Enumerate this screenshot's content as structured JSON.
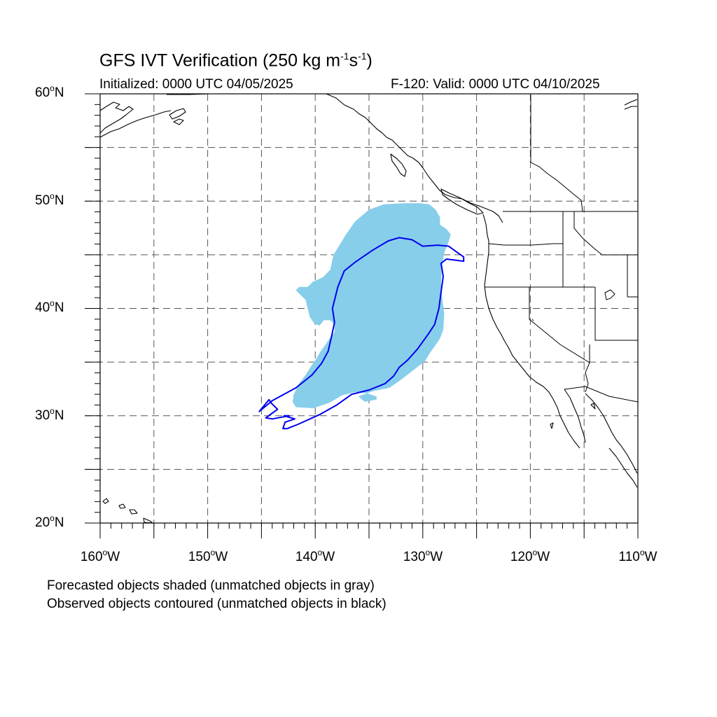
{
  "figure": {
    "title_main": "GFS IVT Verification (250 kg m",
    "title_exp1": "-1",
    "title_mid": "s",
    "title_exp2": "-1",
    "title_end": ")",
    "initialized": "Initialized: 0000 UTC 04/05/2025",
    "valid": "F-120: Valid: 0000 UTC 04/10/2025"
  },
  "axes": {
    "lat_labels": [
      {
        "value": "60",
        "deg": "o",
        "hemi": "N"
      },
      {
        "value": "50",
        "deg": "o",
        "hemi": "N"
      },
      {
        "value": "40",
        "deg": "o",
        "hemi": "N"
      },
      {
        "value": "30",
        "deg": "o",
        "hemi": "N"
      },
      {
        "value": "20",
        "deg": "o",
        "hemi": "N"
      }
    ],
    "lon_labels": [
      {
        "value": "160",
        "deg": "o",
        "hemi": "W"
      },
      {
        "value": "150",
        "deg": "o",
        "hemi": "W"
      },
      {
        "value": "140",
        "deg": "o",
        "hemi": "W"
      },
      {
        "value": "130",
        "deg": "o",
        "hemi": "W"
      },
      {
        "value": "120",
        "deg": "o",
        "hemi": "W"
      },
      {
        "value": "110",
        "deg": "o",
        "hemi": "W"
      }
    ],
    "lon_range": [
      -160,
      -110
    ],
    "lat_range": [
      20,
      60
    ],
    "grid_lon_step": 5,
    "grid_lat_step": 5,
    "grid": "dashed"
  },
  "notes": {
    "line1": "Forecasted objects shaded (unmatched objects in gray)",
    "line2": "Observed objects contoured (unmatched objects in black)"
  },
  "colors": {
    "forecast_fill": "#87ceeb",
    "observed_contour": "#0000ee",
    "coastline": "#000000",
    "grid": "#555555"
  },
  "objects": {
    "forecast_object": {
      "status": "matched",
      "outline": [
        [
          -130.3,
          49.8
        ],
        [
          -131.6,
          49.8
        ],
        [
          -133.6,
          49.7
        ],
        [
          -135.0,
          49.2
        ],
        [
          -136.3,
          48.1
        ],
        [
          -137.2,
          46.8
        ],
        [
          -137.8,
          45.8
        ],
        [
          -138.3,
          45.0
        ],
        [
          -138.6,
          43.6
        ],
        [
          -139.3,
          42.9
        ],
        [
          -140.2,
          42.5
        ],
        [
          -140.7,
          42.0
        ],
        [
          -141.5,
          42.0
        ],
        [
          -141.8,
          41.7
        ],
        [
          -141.4,
          41.3
        ],
        [
          -140.9,
          40.8
        ],
        [
          -140.7,
          40.0
        ],
        [
          -140.5,
          39.2
        ],
        [
          -140.1,
          38.6
        ],
        [
          -139.6,
          38.4
        ],
        [
          -139.2,
          38.9
        ],
        [
          -138.6,
          38.9
        ],
        [
          -138.2,
          38.5
        ],
        [
          -138.2,
          37.8
        ],
        [
          -138.6,
          37.3
        ],
        [
          -139.0,
          36.7
        ],
        [
          -139.5,
          36.0
        ],
        [
          -139.9,
          35.3
        ],
        [
          -140.4,
          34.6
        ],
        [
          -140.9,
          33.8
        ],
        [
          -141.5,
          33.0
        ],
        [
          -142.0,
          32.0
        ],
        [
          -142.1,
          31.3
        ],
        [
          -141.8,
          30.8
        ],
        [
          -140.2,
          30.7
        ],
        [
          -138.7,
          31.2
        ],
        [
          -137.5,
          31.9
        ],
        [
          -136.3,
          32.2
        ],
        [
          -135.2,
          32.1
        ],
        [
          -134.3,
          31.8
        ],
        [
          -134.3,
          31.5
        ],
        [
          -135.4,
          31.3
        ],
        [
          -136.0,
          31.8
        ],
        [
          -134.6,
          32.3
        ],
        [
          -133.1,
          32.6
        ],
        [
          -132.1,
          33.3
        ],
        [
          -130.8,
          34.3
        ],
        [
          -129.8,
          35.1
        ],
        [
          -129.3,
          35.9
        ],
        [
          -128.8,
          36.6
        ],
        [
          -128.4,
          37.2
        ],
        [
          -128.1,
          38.0
        ],
        [
          -128.0,
          39.5
        ],
        [
          -128.2,
          41.0
        ],
        [
          -128.3,
          42.5
        ],
        [
          -128.2,
          44.0
        ],
        [
          -128.0,
          45.2
        ],
        [
          -127.6,
          46.2
        ],
        [
          -127.4,
          46.9
        ],
        [
          -127.8,
          47.4
        ],
        [
          -128.4,
          47.8
        ],
        [
          -128.4,
          48.5
        ],
        [
          -128.8,
          49.2
        ],
        [
          -129.4,
          49.7
        ]
      ]
    },
    "observed_object": {
      "status": "matched",
      "outline": [
        [
          -138.4,
          40.0
        ],
        [
          -137.9,
          42.0
        ],
        [
          -137.3,
          43.5
        ],
        [
          -136.3,
          44.3
        ],
        [
          -134.7,
          45.4
        ],
        [
          -133.2,
          46.3
        ],
        [
          -132.2,
          46.6
        ],
        [
          -131.0,
          46.4
        ],
        [
          -130.0,
          45.8
        ],
        [
          -128.6,
          45.9
        ],
        [
          -127.6,
          45.8
        ],
        [
          -126.9,
          45.3
        ],
        [
          -126.2,
          44.8
        ],
        [
          -126.2,
          44.4
        ],
        [
          -127.0,
          44.5
        ],
        [
          -127.8,
          44.6
        ],
        [
          -128.3,
          44.2
        ],
        [
          -128.1,
          43.0
        ],
        [
          -128.3,
          41.5
        ],
        [
          -128.5,
          40.0
        ],
        [
          -128.9,
          38.5
        ],
        [
          -129.5,
          37.6
        ],
        [
          -130.5,
          36.2
        ],
        [
          -131.4,
          35.2
        ],
        [
          -132.2,
          34.5
        ],
        [
          -132.7,
          33.7
        ],
        [
          -133.5,
          33.0
        ],
        [
          -135.0,
          32.4
        ],
        [
          -136.6,
          32.0
        ],
        [
          -138.0,
          31.0
        ],
        [
          -139.6,
          30.1
        ],
        [
          -141.6,
          29.2
        ],
        [
          -142.6,
          28.8
        ],
        [
          -143.0,
          28.8
        ],
        [
          -142.8,
          29.4
        ],
        [
          -141.9,
          29.7
        ],
        [
          -142.9,
          30.0
        ],
        [
          -142.4,
          30.0
        ],
        [
          -144.0,
          29.7
        ],
        [
          -144.6,
          29.8
        ],
        [
          -143.5,
          30.6
        ],
        [
          -144.1,
          31.2
        ],
        [
          -144.3,
          31.5
        ],
        [
          -145.2,
          30.4
        ],
        [
          -144.0,
          31.4
        ],
        [
          -141.8,
          32.6
        ],
        [
          -140.3,
          33.8
        ],
        [
          -139.4,
          34.9
        ],
        [
          -138.8,
          36.0
        ],
        [
          -138.5,
          37.3
        ],
        [
          -138.2,
          38.7
        ]
      ]
    }
  }
}
